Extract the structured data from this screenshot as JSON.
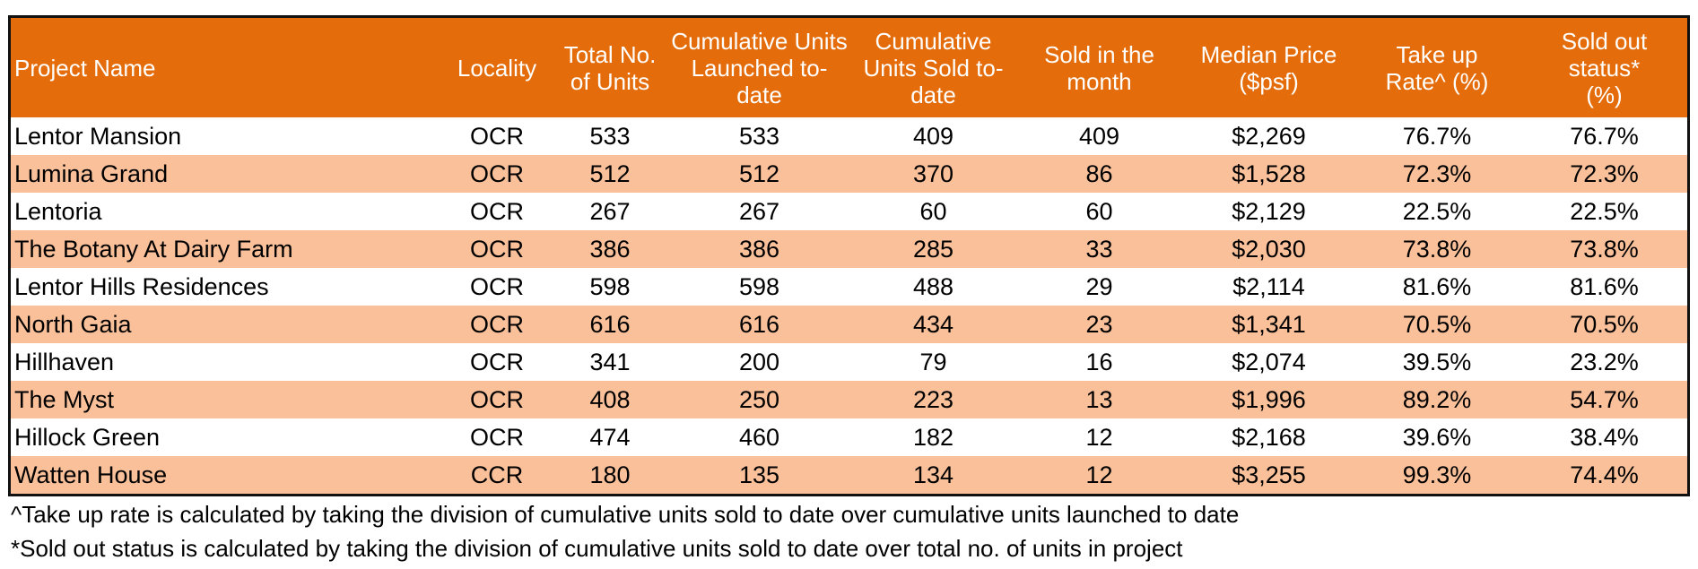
{
  "chart_data": {
    "type": "table",
    "columns": [
      "Project Name",
      "Locality",
      "Total No. of Units",
      "Cumulative Units Launched to-date",
      "Cumulative Units Sold to-date",
      "Sold in the month",
      "Median Price ($psf)",
      "Take up Rate^ (%)",
      "Sold out status* (%)"
    ],
    "rows": [
      [
        "Lentor Mansion",
        "OCR",
        "533",
        "533",
        "409",
        "409",
        "$2,269",
        "76.7%",
        "76.7%"
      ],
      [
        "Lumina Grand",
        "OCR",
        "512",
        "512",
        "370",
        "86",
        "$1,528",
        "72.3%",
        "72.3%"
      ],
      [
        "Lentoria",
        "OCR",
        "267",
        "267",
        "60",
        "60",
        "$2,129",
        "22.5%",
        "22.5%"
      ],
      [
        "The Botany At Dairy Farm",
        "OCR",
        "386",
        "386",
        "285",
        "33",
        "$2,030",
        "73.8%",
        "73.8%"
      ],
      [
        "Lentor Hills Residences",
        "OCR",
        "598",
        "598",
        "488",
        "29",
        "$2,114",
        "81.6%",
        "81.6%"
      ],
      [
        "North Gaia",
        "OCR",
        "616",
        "616",
        "434",
        "23",
        "$1,341",
        "70.5%",
        "70.5%"
      ],
      [
        "Hillhaven",
        "OCR",
        "341",
        "200",
        "79",
        "16",
        "$2,074",
        "39.5%",
        "23.2%"
      ],
      [
        "The Myst",
        "OCR",
        "408",
        "250",
        "223",
        "13",
        "$1,996",
        "89.2%",
        "54.7%"
      ],
      [
        "Hillock Green",
        "OCR",
        "474",
        "460",
        "182",
        "12",
        "$2,168",
        "39.6%",
        "38.4%"
      ],
      [
        "Watten House",
        "CCR",
        "180",
        "135",
        "134",
        "12",
        "$3,255",
        "99.3%",
        "74.4%"
      ]
    ],
    "footnotes": [
      "^Take up rate is calculated by taking the division of cumulative units sold to date over cumulative units launched to date",
      "*Sold out status is calculated by taking the division of cumulative units sold to date over total no. of units in project"
    ]
  },
  "colors": {
    "header_bg": "#e46c0a",
    "header_text": "#ffffff",
    "band_row": "#f9c09a",
    "plain_row": "#ffffff",
    "border": "#111111"
  }
}
